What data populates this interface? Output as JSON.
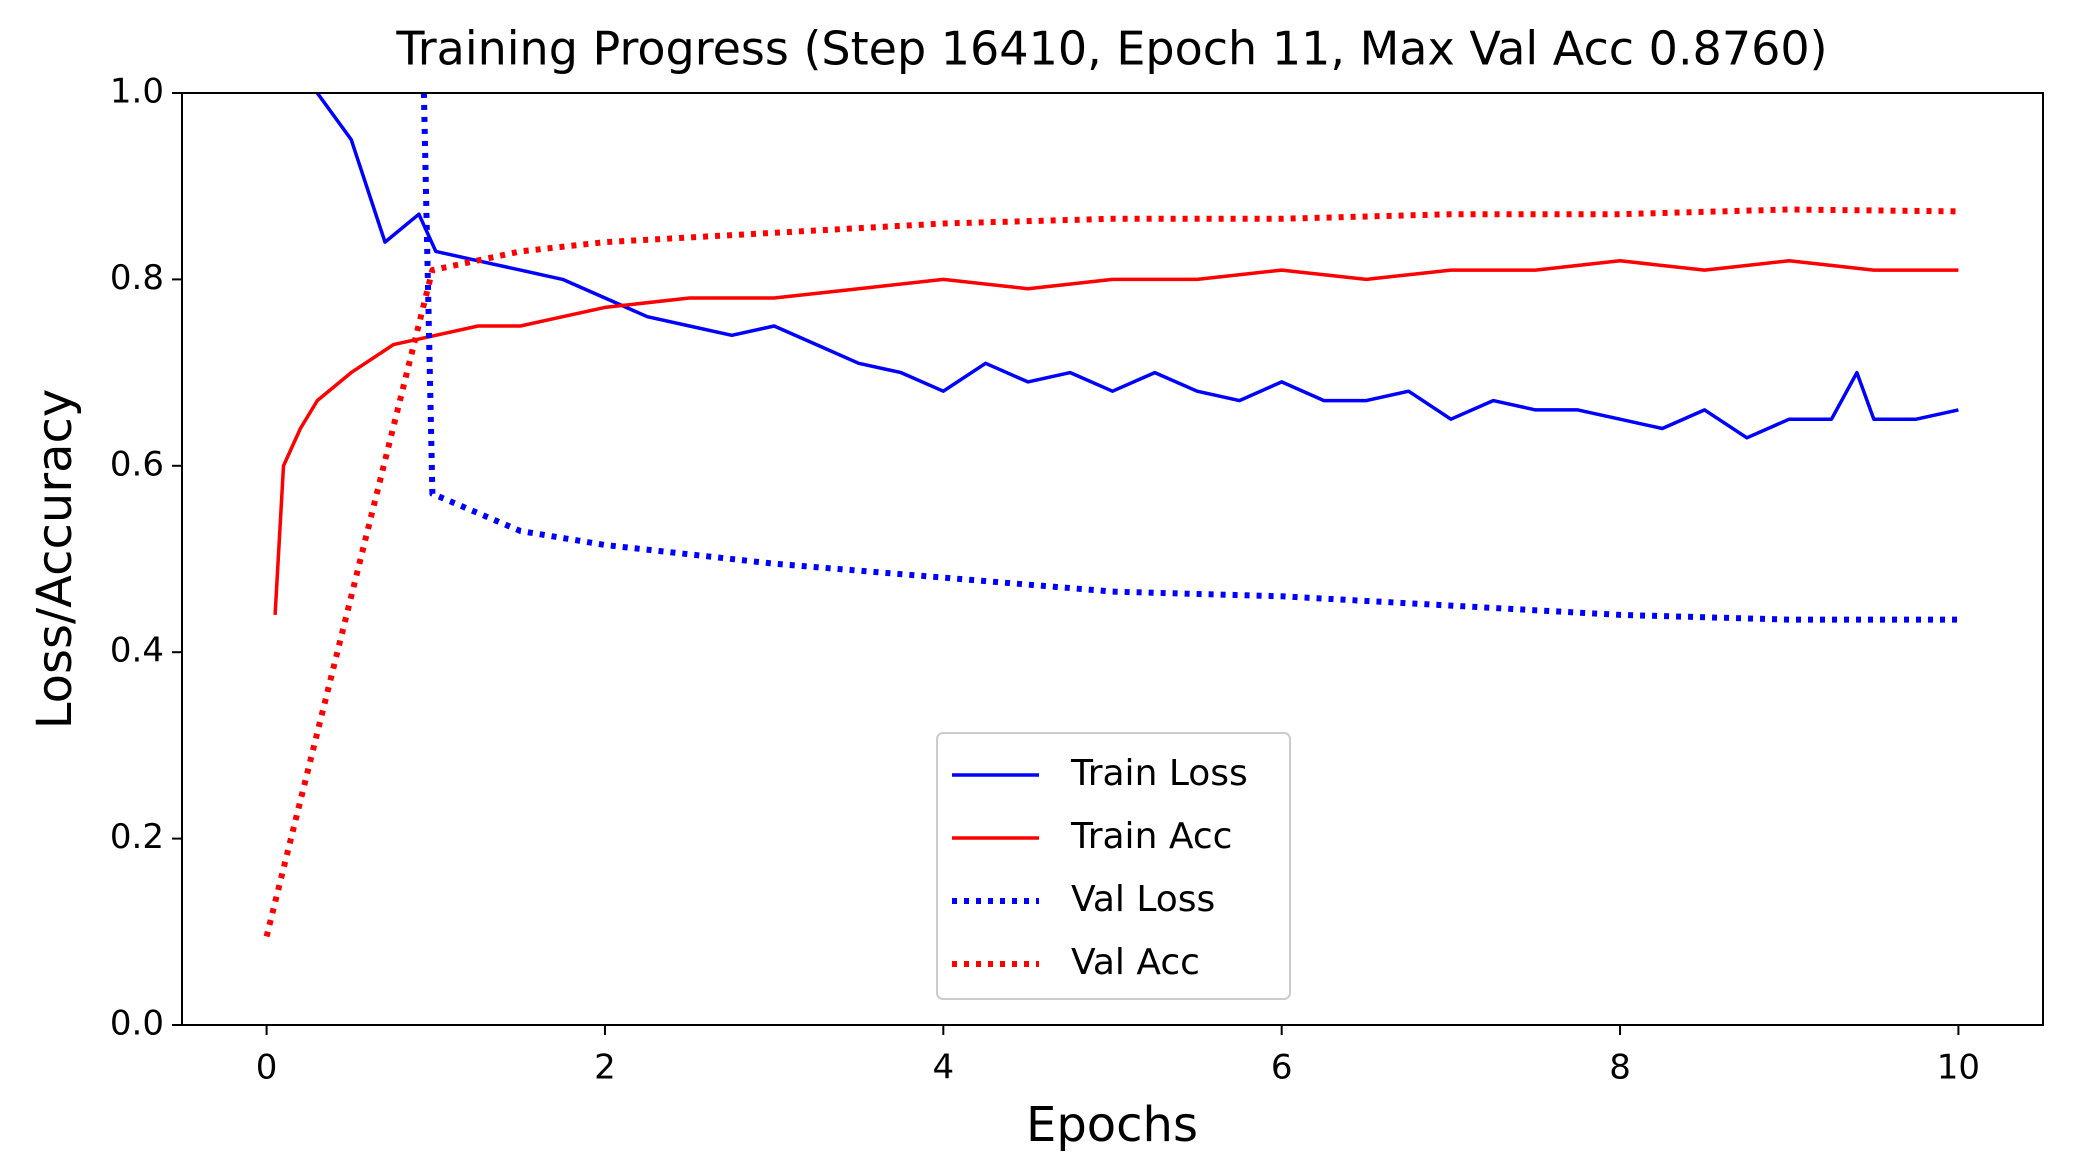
{
  "chart_data": {
    "type": "line",
    "title": "Training Progress (Step 16410, Epoch 11, Max Val Acc 0.8760)",
    "x_label": "Epochs",
    "y_label": "Loss/Accuracy",
    "xlim": [
      -0.5,
      10.5
    ],
    "ylim": [
      0,
      1
    ],
    "xticks": [
      0,
      2,
      4,
      6,
      8,
      10
    ],
    "yticks": [
      {
        "value": 0,
        "label": "0.0"
      },
      0.2,
      0.4,
      0.6,
      0.8,
      {
        "value": 1,
        "label": "1.0"
      }
    ],
    "legend": "lower center",
    "series": [
      {
        "name": "Train Loss",
        "color": "#0000ff",
        "style": "solid",
        "x": [
          0.3,
          0.5,
          0.7,
          0.9,
          1.0,
          1.25,
          1.5,
          1.75,
          2.0,
          2.25,
          2.5,
          2.75,
          3.0,
          3.25,
          3.5,
          3.75,
          4.0,
          4.25,
          4.5,
          4.75,
          5.0,
          5.25,
          5.5,
          5.75,
          6.0,
          6.25,
          6.5,
          6.75,
          7.0,
          7.25,
          7.5,
          7.75,
          8.0,
          8.25,
          8.5,
          8.75,
          9.0,
          9.25,
          9.4,
          9.5,
          9.75,
          10.0
        ],
        "values": [
          1.0,
          0.95,
          0.84,
          0.87,
          0.83,
          0.82,
          0.81,
          0.8,
          0.78,
          0.76,
          0.75,
          0.74,
          0.75,
          0.73,
          0.71,
          0.7,
          0.68,
          0.71,
          0.69,
          0.7,
          0.68,
          0.7,
          0.68,
          0.67,
          0.69,
          0.67,
          0.67,
          0.68,
          0.65,
          0.67,
          0.66,
          0.66,
          0.65,
          0.64,
          0.66,
          0.63,
          0.65,
          0.65,
          0.7,
          0.65,
          0.65,
          0.66
        ]
      },
      {
        "name": "Train Acc",
        "color": "#ff0000",
        "style": "solid",
        "x": [
          0.05,
          0.1,
          0.2,
          0.3,
          0.5,
          0.75,
          1.0,
          1.25,
          1.5,
          1.75,
          2.0,
          2.5,
          3.0,
          3.5,
          4.0,
          4.5,
          5.0,
          5.5,
          6.0,
          6.5,
          7.0,
          7.5,
          8.0,
          8.5,
          9.0,
          9.5,
          10.0
        ],
        "values": [
          0.44,
          0.6,
          0.64,
          0.67,
          0.7,
          0.73,
          0.74,
          0.75,
          0.75,
          0.76,
          0.77,
          0.78,
          0.78,
          0.79,
          0.8,
          0.79,
          0.8,
          0.8,
          0.81,
          0.8,
          0.81,
          0.81,
          0.82,
          0.81,
          0.82,
          0.81,
          0.81
        ]
      },
      {
        "name": "Val Loss",
        "color": "#0000ff",
        "style": "dotted",
        "x": [
          0.93,
          0.98,
          1.5,
          2.0,
          3.0,
          4.0,
          5.0,
          6.0,
          7.0,
          8.0,
          9.0,
          10.0
        ],
        "values": [
          1.0,
          0.57,
          0.53,
          0.515,
          0.495,
          0.48,
          0.465,
          0.46,
          0.45,
          0.44,
          0.435,
          0.435
        ]
      },
      {
        "name": "Val Acc",
        "color": "#ff0000",
        "style": "dotted",
        "x": [
          0.0,
          0.98,
          1.5,
          2.0,
          3.0,
          4.0,
          5.0,
          6.0,
          7.0,
          8.0,
          9.0,
          10.0
        ],
        "values": [
          0.095,
          0.81,
          0.83,
          0.84,
          0.85,
          0.86,
          0.865,
          0.865,
          0.87,
          0.87,
          0.875,
          0.873
        ]
      }
    ]
  }
}
